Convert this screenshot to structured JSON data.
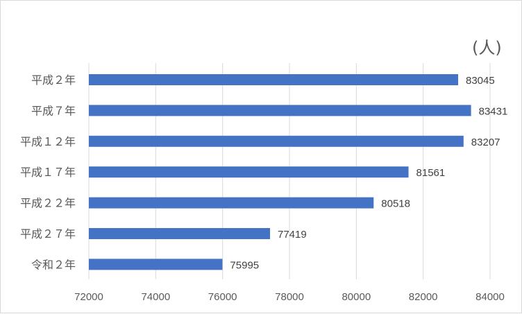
{
  "chart_data": {
    "type": "bar",
    "orientation": "horizontal",
    "unit_label": "(人)",
    "categories": [
      "平成２年",
      "平成７年",
      "平成１２年",
      "平成１７年",
      "平成２２年",
      "平成２７年",
      "令和２年"
    ],
    "category_display": [
      "平成２年",
      "平成７年",
      "平成１２年",
      "平成１７年",
      "平成２２年",
      "平成２７年",
      "令和２年"
    ],
    "values": [
      83045,
      83431,
      83207,
      81561,
      80518,
      77419,
      75995
    ],
    "xlim": [
      72000,
      84000
    ],
    "xticks": [
      72000,
      74000,
      76000,
      78000,
      80000,
      82000,
      84000
    ],
    "grid": true,
    "legend": "none",
    "bar_color": "#4472c4",
    "grid_color": "#d9d9d9"
  }
}
